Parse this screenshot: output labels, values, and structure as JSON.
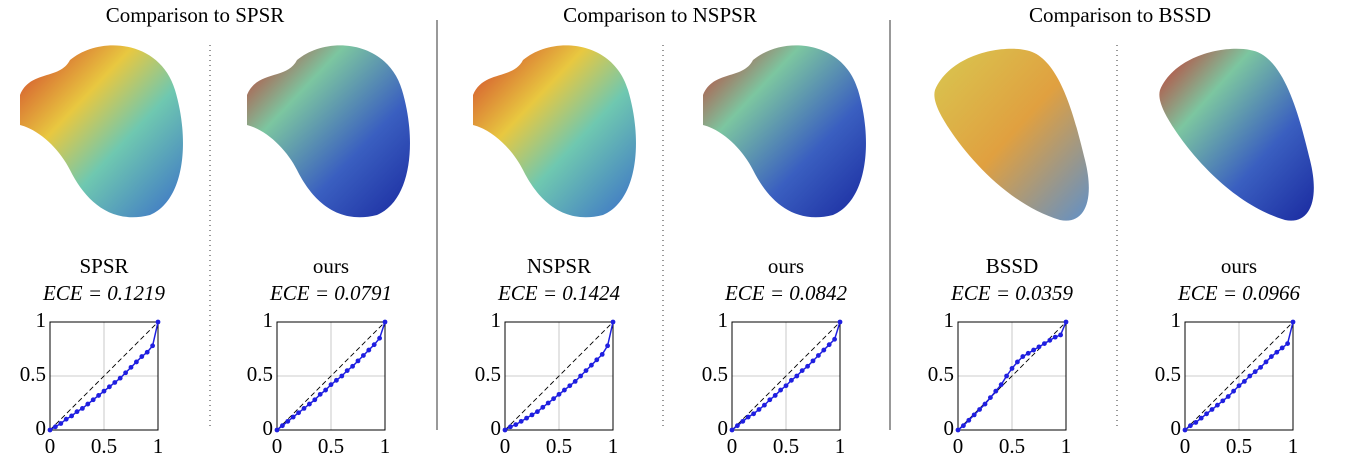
{
  "groups": [
    {
      "title": "Comparison to SPSR"
    },
    {
      "title": "Comparison to NSPSR"
    },
    {
      "title": "Comparison to BSSD"
    }
  ],
  "chart_data": [
    {
      "type": "line",
      "title": "SPSR",
      "subtitle": "ECE = 0.1219",
      "color": "#1f1fe0",
      "x": [
        0,
        0.05,
        0.1,
        0.15,
        0.2,
        0.25,
        0.3,
        0.35,
        0.4,
        0.45,
        0.5,
        0.55,
        0.6,
        0.65,
        0.7,
        0.75,
        0.8,
        0.85,
        0.9,
        0.95,
        1
      ],
      "values": [
        0,
        0.03,
        0.06,
        0.1,
        0.13,
        0.17,
        0.2,
        0.24,
        0.28,
        0.32,
        0.36,
        0.4,
        0.44,
        0.48,
        0.53,
        0.58,
        0.63,
        0.68,
        0.72,
        0.78,
        1
      ],
      "xlim": [
        0,
        1
      ],
      "ylim": [
        0,
        1
      ],
      "xticks": [
        0,
        0.5,
        1
      ],
      "yticks": [
        0,
        0.5,
        1
      ],
      "grid": true
    },
    {
      "type": "line",
      "title": "ours",
      "subtitle": "ECE = 0.0791",
      "color": "#1f1fe0",
      "x": [
        0,
        0.05,
        0.1,
        0.15,
        0.2,
        0.25,
        0.3,
        0.35,
        0.4,
        0.45,
        0.5,
        0.55,
        0.6,
        0.65,
        0.7,
        0.75,
        0.8,
        0.85,
        0.9,
        0.95,
        1
      ],
      "values": [
        0,
        0.04,
        0.08,
        0.12,
        0.16,
        0.2,
        0.24,
        0.28,
        0.33,
        0.37,
        0.42,
        0.46,
        0.5,
        0.55,
        0.59,
        0.64,
        0.69,
        0.74,
        0.79,
        0.85,
        1
      ],
      "xlim": [
        0,
        1
      ],
      "ylim": [
        0,
        1
      ],
      "xticks": [
        0,
        0.5,
        1
      ],
      "yticks": [
        0,
        0.5,
        1
      ],
      "grid": true
    },
    {
      "type": "line",
      "title": "NSPSR",
      "subtitle": "ECE = 0.1424",
      "color": "#1f1fe0",
      "x": [
        0,
        0.05,
        0.1,
        0.15,
        0.2,
        0.25,
        0.3,
        0.35,
        0.4,
        0.45,
        0.5,
        0.55,
        0.6,
        0.65,
        0.7,
        0.75,
        0.8,
        0.85,
        0.9,
        0.95,
        1
      ],
      "values": [
        0,
        0.03,
        0.05,
        0.08,
        0.11,
        0.14,
        0.17,
        0.21,
        0.25,
        0.29,
        0.33,
        0.37,
        0.41,
        0.45,
        0.5,
        0.55,
        0.6,
        0.65,
        0.7,
        0.78,
        1
      ],
      "xlim": [
        0,
        1
      ],
      "ylim": [
        0,
        1
      ],
      "xticks": [
        0,
        0.5,
        1
      ],
      "yticks": [
        0,
        0.5,
        1
      ],
      "grid": true
    },
    {
      "type": "line",
      "title": "ours",
      "subtitle": "ECE = 0.0842",
      "color": "#1f1fe0",
      "x": [
        0,
        0.05,
        0.1,
        0.15,
        0.2,
        0.25,
        0.3,
        0.35,
        0.4,
        0.45,
        0.5,
        0.55,
        0.6,
        0.65,
        0.7,
        0.75,
        0.8,
        0.85,
        0.9,
        0.95,
        1
      ],
      "values": [
        0,
        0.04,
        0.08,
        0.12,
        0.15,
        0.19,
        0.23,
        0.28,
        0.32,
        0.37,
        0.41,
        0.46,
        0.5,
        0.55,
        0.59,
        0.64,
        0.69,
        0.74,
        0.79,
        0.84,
        1
      ],
      "xlim": [
        0,
        1
      ],
      "ylim": [
        0,
        1
      ],
      "xticks": [
        0,
        0.5,
        1
      ],
      "yticks": [
        0,
        0.5,
        1
      ],
      "grid": true
    },
    {
      "type": "line",
      "title": "BSSD",
      "subtitle": "ECE = 0.0359",
      "color": "#1f1fe0",
      "x": [
        0,
        0.05,
        0.1,
        0.15,
        0.2,
        0.25,
        0.3,
        0.35,
        0.4,
        0.45,
        0.5,
        0.55,
        0.6,
        0.65,
        0.7,
        0.75,
        0.8,
        0.85,
        0.9,
        0.95,
        1
      ],
      "values": [
        0,
        0.04,
        0.09,
        0.14,
        0.19,
        0.24,
        0.3,
        0.36,
        0.42,
        0.5,
        0.57,
        0.63,
        0.68,
        0.71,
        0.74,
        0.77,
        0.8,
        0.83,
        0.86,
        0.88,
        1
      ],
      "xlim": [
        0,
        1
      ],
      "ylim": [
        0,
        1
      ],
      "xticks": [
        0,
        0.5,
        1
      ],
      "yticks": [
        0,
        0.5,
        1
      ],
      "grid": true
    },
    {
      "type": "line",
      "title": "ours",
      "subtitle": "ECE = 0.0966",
      "color": "#1f1fe0",
      "x": [
        0,
        0.05,
        0.1,
        0.15,
        0.2,
        0.25,
        0.3,
        0.35,
        0.4,
        0.45,
        0.5,
        0.55,
        0.6,
        0.65,
        0.7,
        0.75,
        0.8,
        0.85,
        0.9,
        0.95,
        1
      ],
      "values": [
        0,
        0.04,
        0.07,
        0.11,
        0.15,
        0.19,
        0.23,
        0.27,
        0.31,
        0.36,
        0.41,
        0.45,
        0.5,
        0.54,
        0.58,
        0.63,
        0.68,
        0.72,
        0.76,
        0.8,
        1
      ],
      "xlim": [
        0,
        1
      ],
      "ylim": [
        0,
        1
      ],
      "xticks": [
        0,
        0.5,
        1
      ],
      "yticks": [
        0,
        0.5,
        1
      ],
      "grid": true
    }
  ]
}
